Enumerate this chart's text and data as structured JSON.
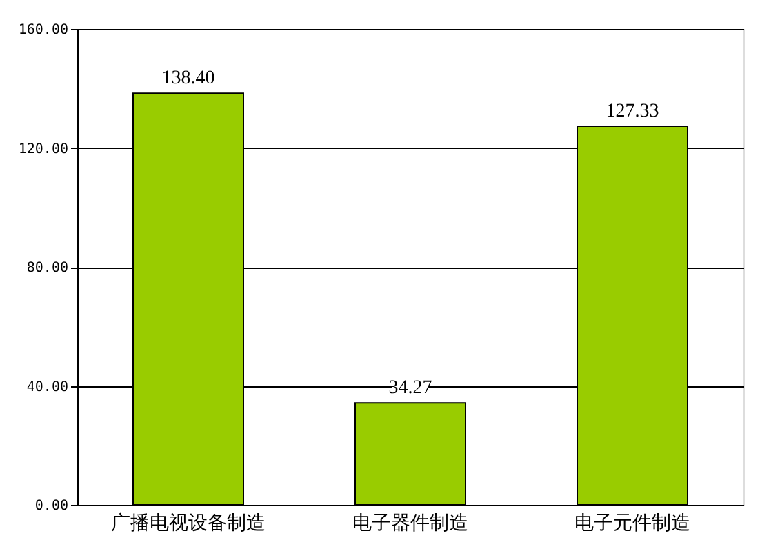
{
  "chart_data": {
    "type": "bar",
    "categories": [
      "广播电视设备制造",
      "电子器件制造",
      "电子元件制造"
    ],
    "values": [
      138.4,
      34.27,
      127.33
    ],
    "color": "#99cc00",
    "ylim": [
      0,
      160
    ],
    "yticks": [
      {
        "value": 0,
        "label": "0.00"
      },
      {
        "value": 40,
        "label": "40.00"
      },
      {
        "value": 80,
        "label": "80.00"
      },
      {
        "value": 120,
        "label": "120.00"
      },
      {
        "value": 160,
        "label": "160.00"
      }
    ],
    "grid": "y",
    "value_labels": [
      "138.40",
      "34.27",
      "127.33"
    ]
  }
}
